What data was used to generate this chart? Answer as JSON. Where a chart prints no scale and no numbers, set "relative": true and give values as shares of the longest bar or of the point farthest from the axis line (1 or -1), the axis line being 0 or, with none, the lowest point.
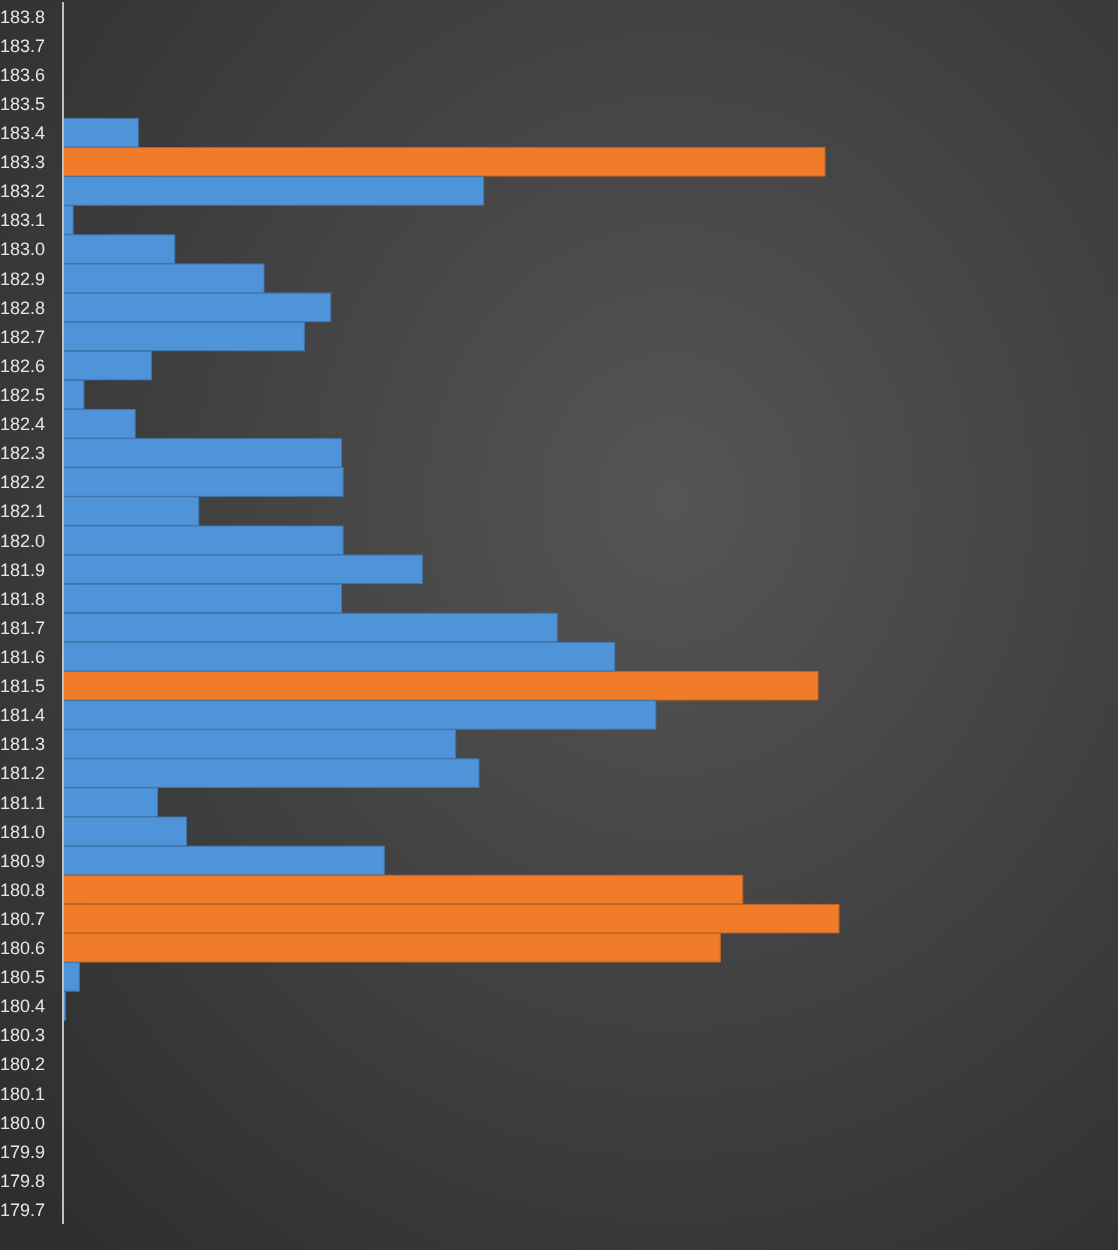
{
  "chart_data": {
    "type": "bar",
    "orientation": "horizontal",
    "relative": true,
    "categories": [
      "183.8",
      "183.7",
      "183.6",
      "183.5",
      "183.4",
      "183.3",
      "183.2",
      "183.1",
      "183.0",
      "182.9",
      "182.8",
      "182.7",
      "182.6",
      "182.5",
      "182.4",
      "182.3",
      "182.2",
      "182.1",
      "182.0",
      "181.9",
      "181.8",
      "181.7",
      "181.6",
      "181.5",
      "181.4",
      "181.3",
      "181.2",
      "181.1",
      "181.0",
      "180.9",
      "180.8",
      "180.7",
      "180.6",
      "180.5",
      "180.4",
      "180.3",
      "180.2",
      "180.1",
      "180.0",
      "179.9",
      "179.8",
      "179.7"
    ],
    "values": [
      0,
      0,
      0,
      0,
      0.097,
      0.982,
      0.542,
      0.013,
      0.144,
      0.259,
      0.345,
      0.311,
      0.114,
      0.027,
      0.093,
      0.359,
      0.361,
      0.175,
      0.361,
      0.463,
      0.359,
      0.637,
      0.711,
      0.973,
      0.764,
      0.506,
      0.536,
      0.122,
      0.159,
      0.414,
      0.876,
      1,
      0.847,
      0.021,
      0.003,
      0,
      0,
      0,
      0,
      0,
      0,
      0
    ],
    "colors": [
      "#4f94d8",
      "#4f94d8",
      "#4f94d8",
      "#4f94d8",
      "#4f94d8",
      "#f07c2a",
      "#4f94d8",
      "#4f94d8",
      "#4f94d8",
      "#4f94d8",
      "#4f94d8",
      "#4f94d8",
      "#4f94d8",
      "#4f94d8",
      "#4f94d8",
      "#4f94d8",
      "#4f94d8",
      "#4f94d8",
      "#4f94d8",
      "#4f94d8",
      "#4f94d8",
      "#4f94d8",
      "#4f94d8",
      "#f07c2a",
      "#4f94d8",
      "#4f94d8",
      "#4f94d8",
      "#4f94d8",
      "#4f94d8",
      "#4f94d8",
      "#f07c2a",
      "#f07c2a",
      "#f07c2a",
      "#4f94d8",
      "#4f94d8",
      "#4f94d8",
      "#4f94d8",
      "#4f94d8",
      "#4f94d8",
      "#4f94d8",
      "#4f94d8",
      "#4f94d8"
    ]
  }
}
